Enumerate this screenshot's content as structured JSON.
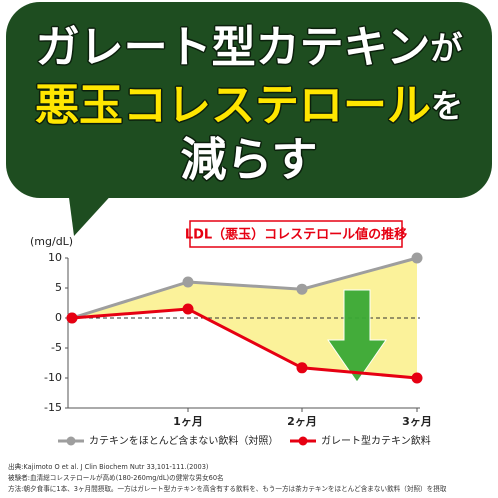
{
  "headline": {
    "line1": "ガレート型カテキン",
    "line1_particle": "が",
    "line2": "悪玉コレステロール",
    "line2_particle": "を",
    "line3": "減らす"
  },
  "chart_data": {
    "type": "line",
    "title": "LDL（悪玉）コレステロール値の推移",
    "y_label": "(mg/dL)",
    "categories": [
      null,
      "1ヶ月",
      "2ヶ月",
      "3ヶ月"
    ],
    "series": [
      {
        "name": "カテキンをほとんど含まない飲料（対照）",
        "color": "#9e9e9e",
        "values": [
          0,
          6,
          4.8,
          10
        ]
      },
      {
        "name": "ガレート型カテキン飲料",
        "color": "#e60012",
        "values": [
          0,
          1.5,
          -8.3,
          -10
        ]
      }
    ],
    "ylim": [
      -15,
      10
    ],
    "yticks": [
      10,
      5,
      0,
      -5,
      -10,
      -15
    ],
    "fill_between": "#fbf29a"
  },
  "footnotes": [
    "出典:Kajimoto O et al. J Clin Biochem Nutr 33,101-111.(2003)",
    "被験者:血清総コレステロールが高め(180-260mg/dL)の健常な男女60名",
    "方法:朝夕食事に1本、3ヶ月間摂取。一方はガレート型カテキンを高含有する飲料を、もう一方は茶カテキンをほとんど含まない飲料（対照）を摂取"
  ]
}
